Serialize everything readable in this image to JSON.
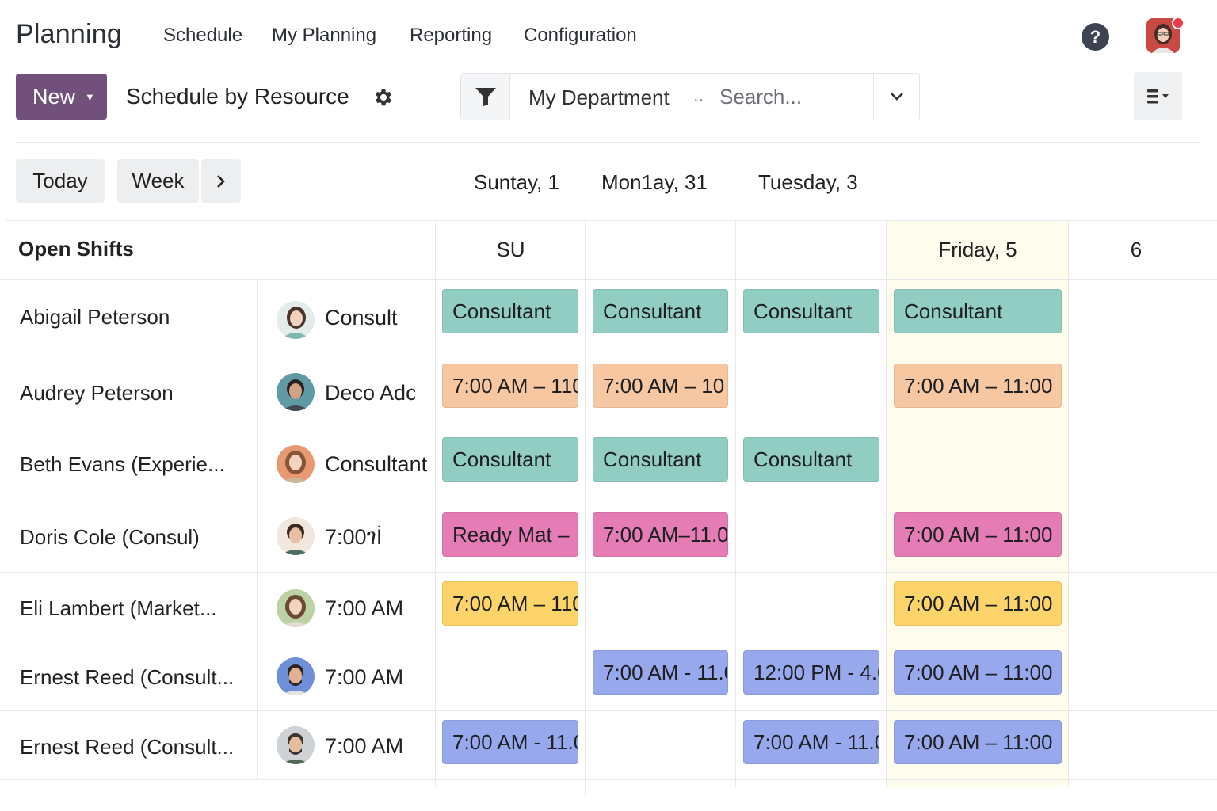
{
  "app": {
    "title": "Planning",
    "nav": [
      "Schedule",
      "My Planning",
      "Reporting",
      "Configuration"
    ],
    "help_label": "?"
  },
  "controls": {
    "new_label": "New",
    "view_title": "Schedule by Resource",
    "search": {
      "facet": "My Department",
      "facet_more": "..",
      "placeholder": "Search..."
    }
  },
  "date_nav": {
    "today_label": "Today",
    "week_label": "Week",
    "next_label": "›",
    "dates": [
      "Suntay, 1",
      "Mon1ay, 31",
      "Tuesday, 3"
    ]
  },
  "grid": {
    "open_shifts_label": "Open Shifts",
    "column_headers": [
      "SU",
      "",
      "",
      "Friday, 5",
      "6"
    ],
    "rows": [
      {
        "name": "Abigail Peterson",
        "role": "Consult",
        "shifts": [
          {
            "label": "Consultant",
            "color": "teal"
          },
          {
            "label": "Consultant",
            "color": "teal"
          },
          {
            "label": "Consultant",
            "color": "teal"
          },
          {
            "label": "Consultant",
            "color": "teal"
          },
          null
        ]
      },
      {
        "name": "Audrey Peterson",
        "role": "Deco Adc",
        "shifts": [
          {
            "label": "7:00 AM – 110",
            "color": "orange"
          },
          {
            "label": "7:00 AM – 10",
            "color": "orange"
          },
          null,
          {
            "label": "7:00 AM – 11:00",
            "color": "orange"
          },
          null
        ]
      },
      {
        "name": "Beth Evans (Experie...",
        "role": "Consultant",
        "shifts": [
          {
            "label": "Consultant",
            "color": "teal"
          },
          {
            "label": "Consultant",
            "color": "teal"
          },
          {
            "label": "Consultant",
            "color": "teal"
          },
          null,
          null
        ]
      },
      {
        "name": "Doris Cole (Consul)",
        "role": "7:00ገİ",
        "shifts": [
          {
            "label": "Ready Mat –",
            "color": "pink"
          },
          {
            "label": "7:00 AM–11.0",
            "color": "pink"
          },
          null,
          {
            "label": "7:00 AM – 11:00",
            "color": "pink"
          },
          null
        ]
      },
      {
        "name": "Eli Lambert (Market...",
        "role": "7:00 AM",
        "shifts": [
          {
            "label": "7:00 AM – 110",
            "color": "yellow"
          },
          null,
          null,
          {
            "label": "7:00 AM – 11:00",
            "color": "yellow"
          },
          null
        ]
      },
      {
        "name": "Ernest Reed (Consult...",
        "role": "7:00 AM",
        "shifts": [
          null,
          {
            "label": "7:00 AM - 11.0",
            "color": "blue"
          },
          {
            "label": "12:00 PM - 4.0",
            "color": "blue"
          },
          {
            "label": "7:00 AM – 11:00",
            "color": "blue"
          },
          null
        ]
      },
      {
        "name": "Ernest Reed (Consult...",
        "role": "7:00 AM",
        "shifts": [
          {
            "label": "7:00 AM - 11.0",
            "color": "blue"
          },
          null,
          {
            "label": "7:00 AM - 11.0",
            "color": "blue"
          },
          {
            "label": "7:00 AM – 11:00",
            "color": "blue"
          },
          null
        ]
      }
    ]
  },
  "colors": {
    "brand": "#71507b",
    "teal": "#92cdc3",
    "orange": "#f6c7a0",
    "pink": "#e57cb5",
    "yellow": "#fcd46a",
    "blue": "#98a8ec",
    "today_bg": "#fefcec"
  },
  "icons": [
    "help-icon",
    "user-avatar",
    "gear-icon",
    "filter-icon",
    "chevron-down-icon",
    "layout-list-icon",
    "chevron-right-icon"
  ]
}
